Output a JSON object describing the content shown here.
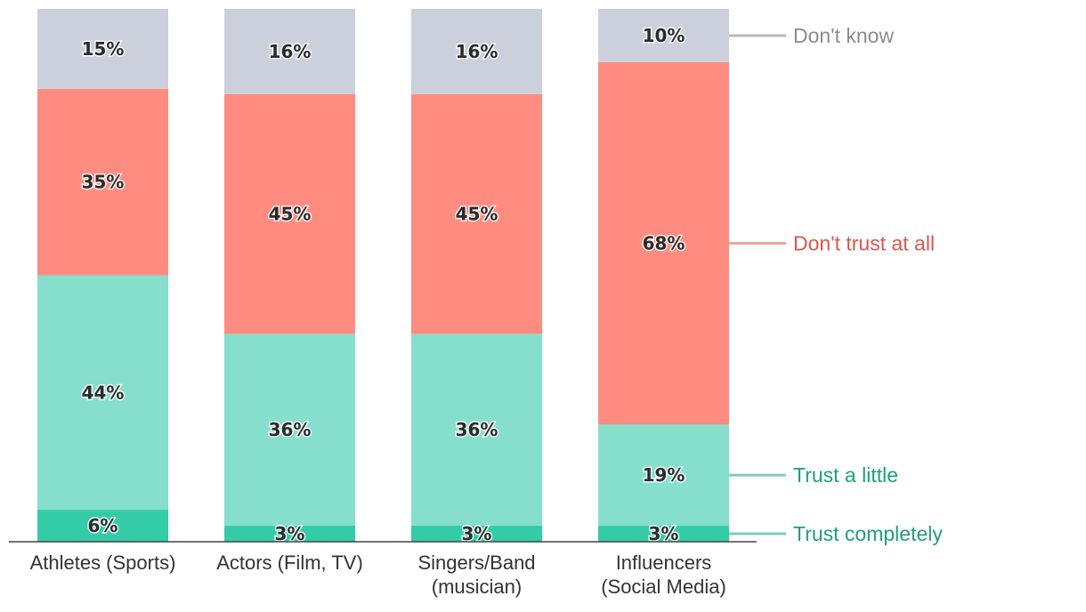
{
  "chart_data": {
    "type": "bar",
    "stacked": true,
    "title": "",
    "xlabel": "",
    "ylabel": "",
    "ylim": [
      0,
      100
    ],
    "categories": [
      [
        "Athletes (Sports)"
      ],
      [
        "Actors (Film, TV)"
      ],
      [
        "Singers/Band",
        "(musician)"
      ],
      [
        "Influencers",
        "(Social Media)"
      ]
    ],
    "series": [
      {
        "name": "Trust completely",
        "values": [
          6,
          3,
          3,
          3
        ],
        "color": "#34CCA6",
        "label_color": "#1E9E7D",
        "line_color": "#7ACFC0"
      },
      {
        "name": "Trust a little",
        "values": [
          44,
          36,
          36,
          19
        ],
        "color": "#86DFCD",
        "label_color": "#1E9E7D",
        "line_color": "#86C9C2"
      },
      {
        "name": "Don't trust at all",
        "values": [
          35,
          45,
          45,
          68
        ],
        "color": "#FF8C80",
        "label_color": "#D9574B",
        "line_color": "#F0A6A0"
      },
      {
        "name": "Don't know",
        "values": [
          15,
          16,
          16,
          10
        ],
        "color": "#CBD0DC",
        "label_color": "#8C8C8C",
        "line_color": "#B4B8C2"
      }
    ],
    "value_suffix": "%",
    "legend": "right, inline beside last bar"
  }
}
